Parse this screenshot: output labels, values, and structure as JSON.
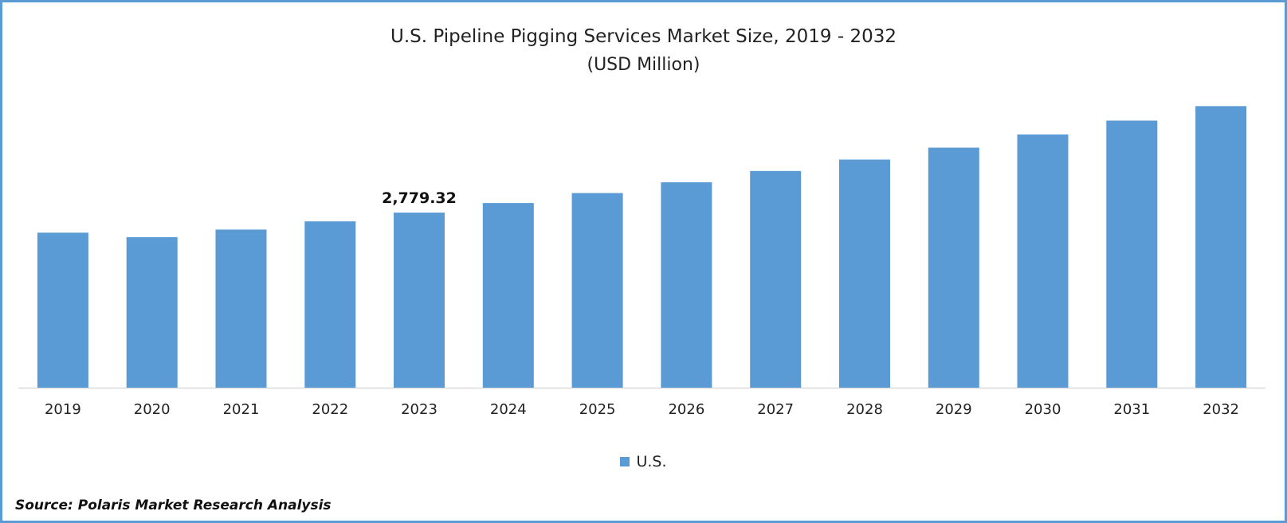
{
  "chart_data": {
    "type": "bar",
    "title": "U.S. Pipeline Pigging Services Market Size, 2019 - 2032",
    "subtitle": "(USD Million)",
    "categories": [
      "2019",
      "2020",
      "2021",
      "2022",
      "2023",
      "2024",
      "2025",
      "2026",
      "2027",
      "2028",
      "2029",
      "2030",
      "2031",
      "2032"
    ],
    "series": [
      {
        "name": "U.S.",
        "color": "#5b9bd5",
        "values": [
          2460,
          2390,
          2510,
          2640,
          2779.32,
          2930,
          3090,
          3260,
          3440,
          3620,
          3810,
          4020,
          4240,
          4470
        ]
      }
    ],
    "data_labels": [
      {
        "category": "2023",
        "text": "2,779.32"
      }
    ],
    "ylim": [
      0,
      4600
    ],
    "grid": false,
    "legend": "bottom-center"
  },
  "footer": {
    "source": "Source: Polaris Market Research Analysis"
  },
  "colors": {
    "frame": "#5b9bd5",
    "bar": "#5b9bd5",
    "axis": "#d9d9d9"
  }
}
